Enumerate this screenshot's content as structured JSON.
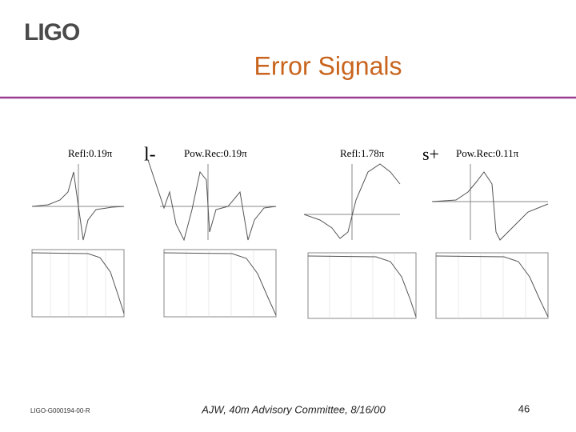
{
  "header": {
    "logo": "LIGO",
    "title": "Error Signals"
  },
  "panels": [
    {
      "label": "Refl:0.19π"
    },
    {
      "label": "l-"
    },
    {
      "label": "Pow.Rec:0.19π"
    },
    {
      "label": "Refl:1.78π"
    },
    {
      "label": "s+"
    },
    {
      "label": "Pow.Rec:0.11π"
    }
  ],
  "footer": {
    "doc_id": "LIGO-G000194-00-R",
    "center": "AJW, 40m Advisory Committee, 8/16/00",
    "page": "46"
  }
}
